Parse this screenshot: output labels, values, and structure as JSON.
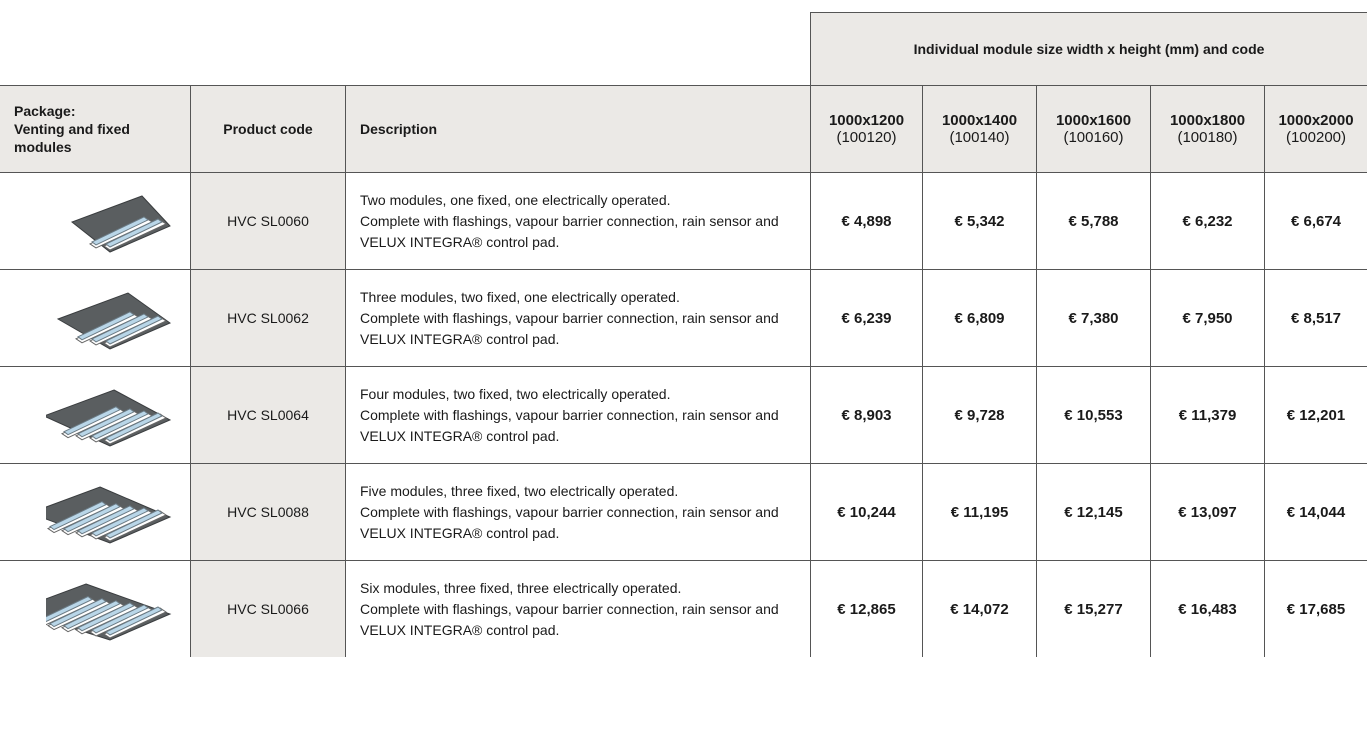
{
  "table": {
    "group_header": "Individual module size width x height (mm) and code",
    "headers": {
      "package": [
        "Package:",
        "Venting and fixed modules"
      ],
      "product_code": "Product code",
      "description": "Description",
      "sizes": [
        {
          "size": "1000x1200",
          "code": "(100120)"
        },
        {
          "size": "1000x1400",
          "code": "(100140)"
        },
        {
          "size": "1000x1600",
          "code": "(100160)"
        },
        {
          "size": "1000x1800",
          "code": "(100180)"
        },
        {
          "size": "1000x2000",
          "code": "(100200)"
        }
      ]
    },
    "rows": [
      {
        "product_code": "HVC SL0060",
        "description": [
          "Two modules, one fixed, one electrically operated.",
          "Complete with flashings, vapour barrier connection, rain sensor and VELUX INTEGRA® control pad."
        ],
        "prices": [
          "€ 4,898",
          "€ 5,342",
          "€ 5,788",
          "€ 6,232",
          "€ 6,674"
        ]
      },
      {
        "product_code": "HVC SL0062",
        "description": [
          "Three modules, two fixed, one electrically operated.",
          "Complete with flashings, vapour barrier connection, rain sensor and VELUX INTEGRA® control pad."
        ],
        "prices": [
          "€ 6,239",
          "€ 6,809",
          "€ 7,380",
          "€ 7,950",
          "€ 8,517"
        ]
      },
      {
        "product_code": "HVC SL0064",
        "description": [
          "Four modules, two fixed, two electrically operated.",
          "Complete with flashings, vapour barrier connection, rain sensor and VELUX INTEGRA® control pad."
        ],
        "prices": [
          "€ 8,903",
          "€ 9,728",
          "€ 10,553",
          "€ 11,379",
          "€ 12,201"
        ]
      },
      {
        "product_code": "HVC SL0088",
        "description": [
          "Five modules, three fixed, two electrically operated.",
          "Complete with flashings, vapour barrier connection, rain sensor and VELUX INTEGRA® control pad."
        ],
        "prices": [
          "€ 10,244",
          "€ 11,195",
          "€ 12,145",
          "€ 13,097",
          "€ 14,044"
        ]
      },
      {
        "product_code": "HVC SL0066",
        "description": [
          "Six modules, three fixed, three electrically operated.",
          "Complete with flashings, vapour barrier connection, rain sensor and VELUX INTEGRA® control pad."
        ],
        "prices": [
          "€ 12,865",
          "€ 14,072",
          "€ 15,277",
          "€ 16,483",
          "€ 17,685"
        ]
      }
    ]
  }
}
